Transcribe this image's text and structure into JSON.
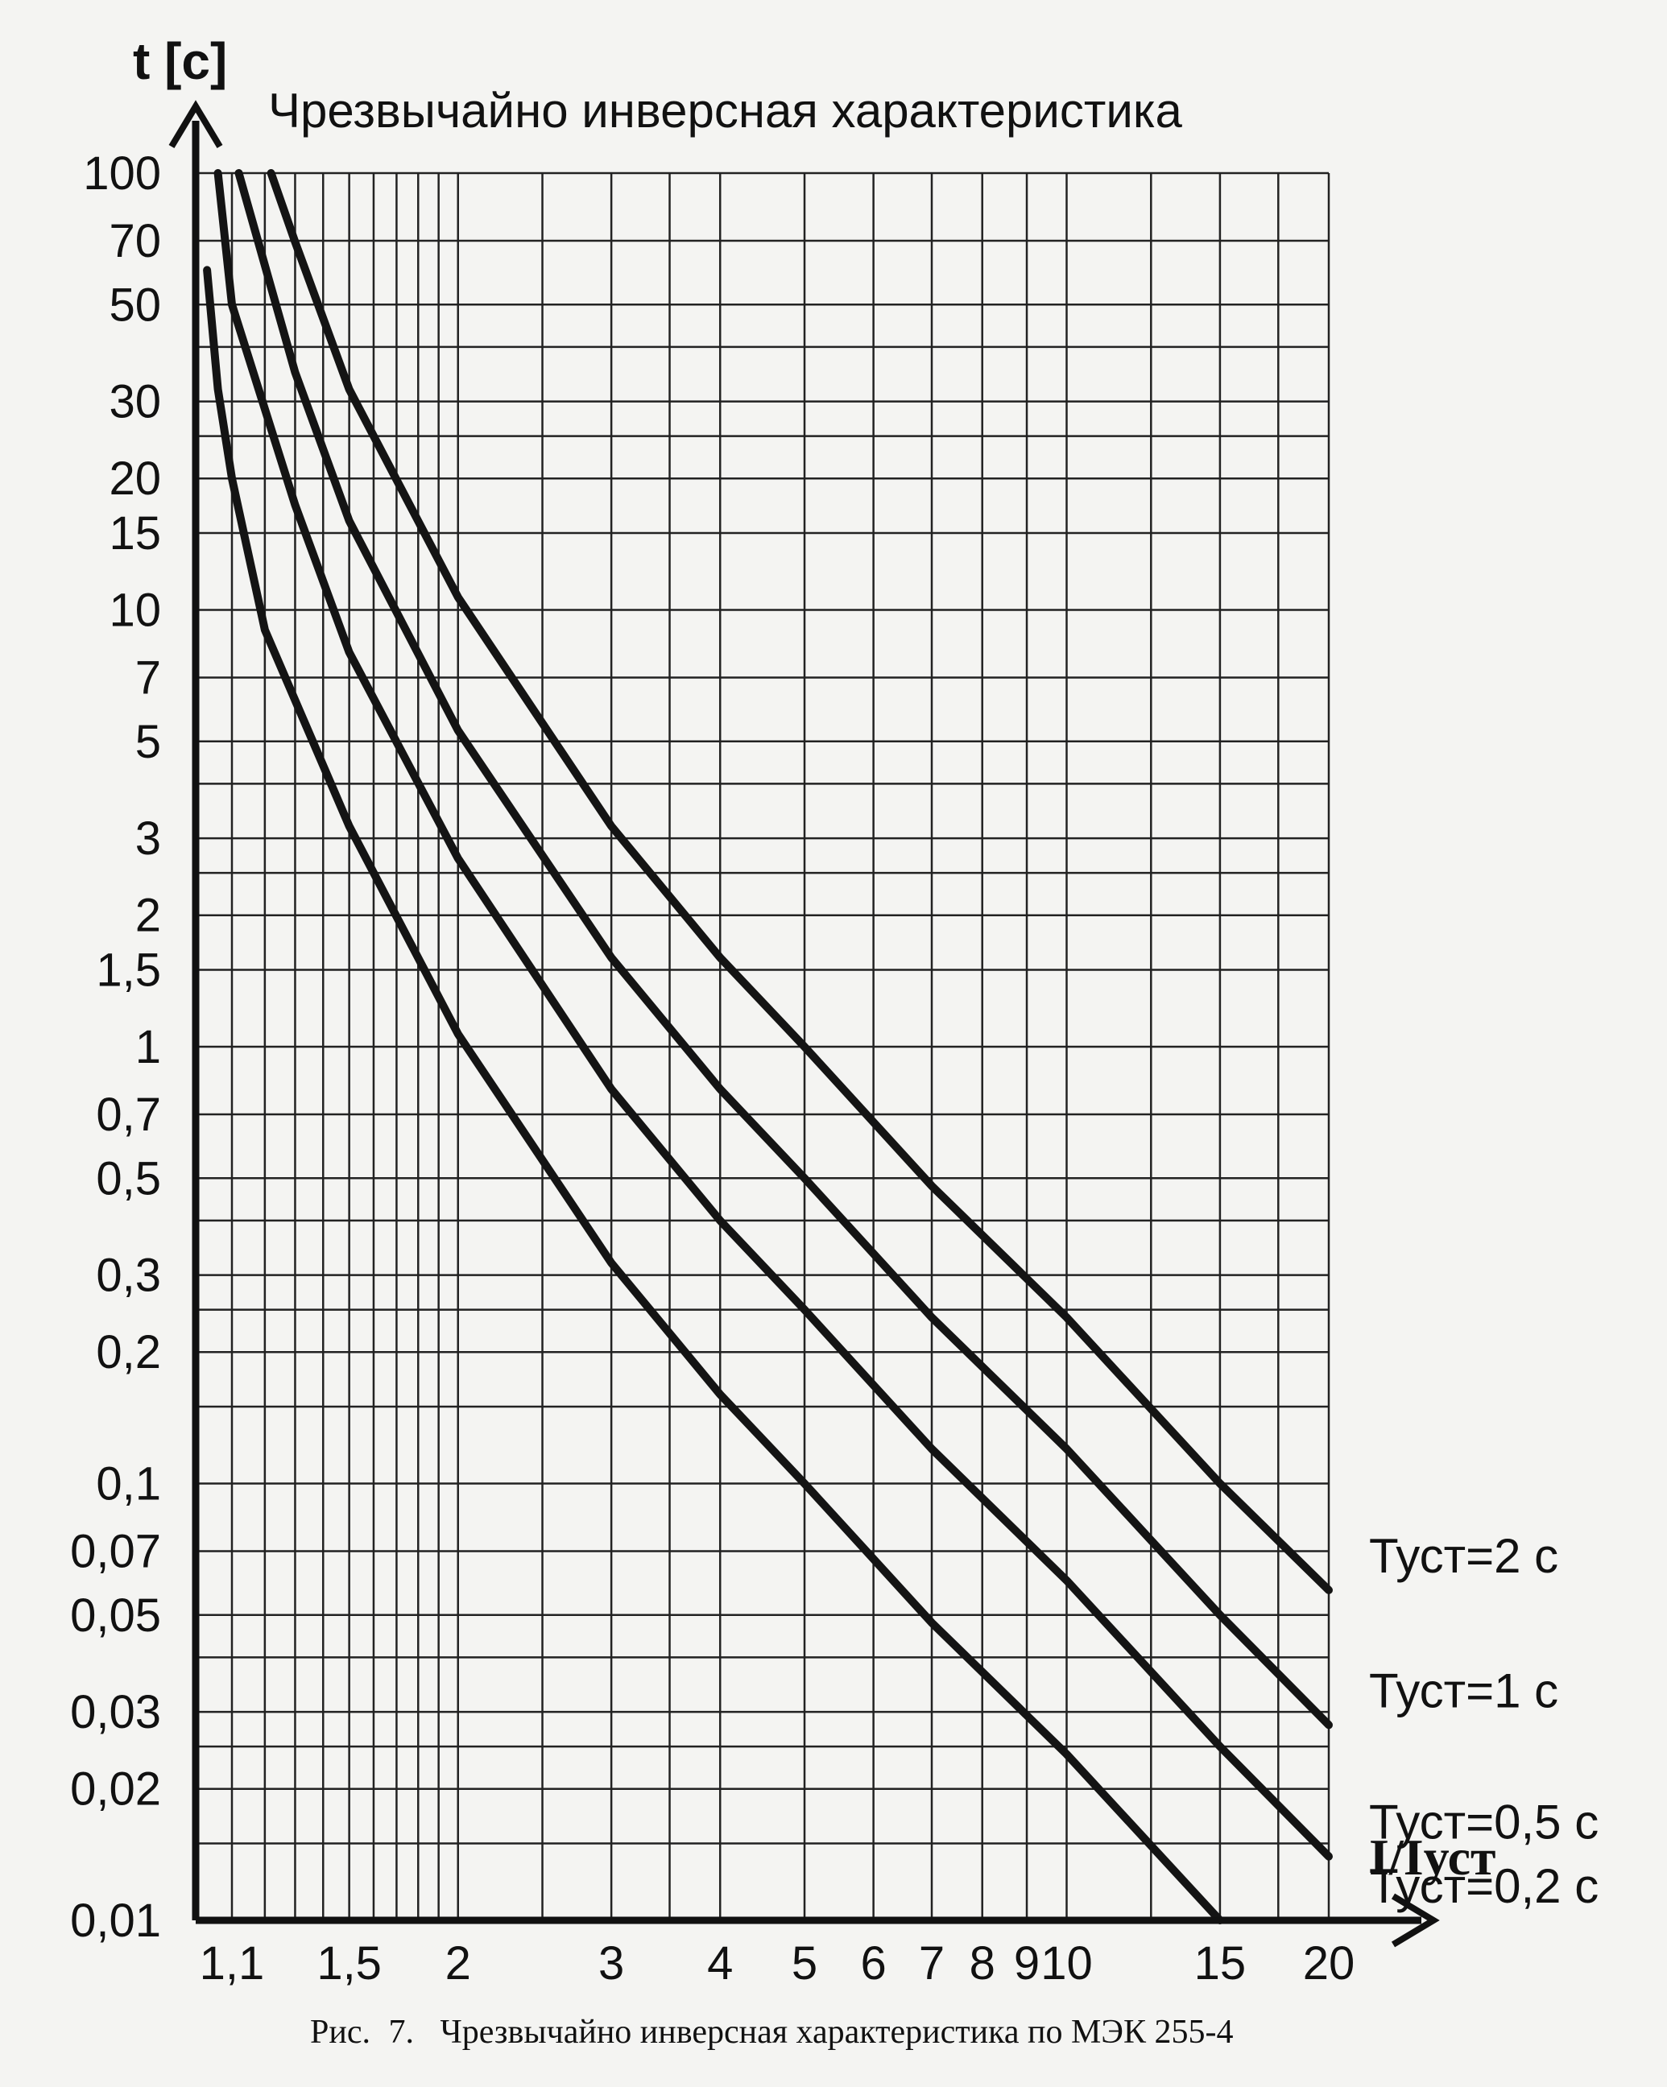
{
  "chart_data": {
    "type": "line",
    "title": "Чрезвычайно инверсная характеристика",
    "ylabel": "t [c]",
    "xlabel": "I/Iуст",
    "x_scale": "log",
    "y_scale": "log",
    "xlim": [
      1.1,
      20
    ],
    "ylim": [
      0.01,
      100
    ],
    "grid": true,
    "x_ticks": [
      1.1,
      1.2,
      1.3,
      1.4,
      1.5,
      1.6,
      1.7,
      1.8,
      1.9,
      2,
      2.5,
      3,
      3.5,
      4,
      5,
      6,
      7,
      8,
      9,
      10,
      12.5,
      15,
      17.5,
      20
    ],
    "x_tick_labels": [
      {
        "x": 1.1,
        "label": "1,1"
      },
      {
        "x": 1.5,
        "label": "1,5"
      },
      {
        "x": 2,
        "label": "2"
      },
      {
        "x": 3,
        "label": "3"
      },
      {
        "x": 4,
        "label": "4"
      },
      {
        "x": 5,
        "label": "5"
      },
      {
        "x": 6,
        "label": "6"
      },
      {
        "x": 7,
        "label": "7"
      },
      {
        "x": 8,
        "label": "8"
      },
      {
        "x": 9,
        "label": "9"
      },
      {
        "x": 10,
        "label": "10"
      },
      {
        "x": 15,
        "label": "15"
      },
      {
        "x": 20,
        "label": "20"
      }
    ],
    "y_tick_labels": [
      {
        "y": 100,
        "label": "100"
      },
      {
        "y": 70,
        "label": "70"
      },
      {
        "y": 50,
        "label": "50"
      },
      {
        "y": 30,
        "label": "30"
      },
      {
        "y": 20,
        "label": "20"
      },
      {
        "y": 15,
        "label": "15"
      },
      {
        "y": 10,
        "label": "10"
      },
      {
        "y": 7,
        "label": "7"
      },
      {
        "y": 5,
        "label": "5"
      },
      {
        "y": 3,
        "label": "3"
      },
      {
        "y": 2,
        "label": "2"
      },
      {
        "y": 1.5,
        "label": "1,5"
      },
      {
        "y": 1,
        "label": "1"
      },
      {
        "y": 0.7,
        "label": "0,7"
      },
      {
        "y": 0.5,
        "label": "0,5"
      },
      {
        "y": 0.3,
        "label": "0,3"
      },
      {
        "y": 0.2,
        "label": "0,2"
      },
      {
        "y": 0.1,
        "label": "0,1"
      },
      {
        "y": 0.07,
        "label": "0,07"
      },
      {
        "y": 0.05,
        "label": "0,05"
      },
      {
        "y": 0.03,
        "label": "0,03"
      },
      {
        "y": 0.02,
        "label": "0,02"
      },
      {
        "y": 0.01,
        "label": "0,01"
      }
    ],
    "y_grid": [
      100,
      70,
      50,
      40,
      30,
      25,
      20,
      15,
      10,
      7,
      5,
      4,
      3,
      2.5,
      2,
      1.5,
      1,
      0.7,
      0.5,
      0.4,
      0.3,
      0.25,
      0.2,
      0.15,
      0.1,
      0.07,
      0.05,
      0.04,
      0.03,
      0.025,
      0.02,
      0.015,
      0.01
    ],
    "series": [
      {
        "label": "Туст=2 с",
        "x": [
          1.22,
          1.3,
          1.5,
          2,
          3,
          4,
          5,
          7,
          10,
          15,
          20
        ],
        "y": [
          100,
          69.6,
          32,
          10.7,
          3.2,
          1.6,
          1.0,
          0.48,
          0.24,
          0.1,
          0.057
        ]
      },
      {
        "label": "Туст=1 с",
        "x": [
          1.12,
          1.3,
          1.5,
          2,
          3,
          4,
          5,
          7,
          10,
          15,
          20
        ],
        "y": [
          100,
          35,
          16,
          5.3,
          1.6,
          0.8,
          0.5,
          0.24,
          0.12,
          0.05,
          0.028
        ]
      },
      {
        "label": "Туст=0,5 с",
        "x": [
          1.06,
          1.1,
          1.3,
          1.5,
          2,
          3,
          4,
          5,
          7,
          10,
          15,
          20
        ],
        "y": [
          100,
          50,
          17.4,
          8,
          2.7,
          0.8,
          0.4,
          0.25,
          0.12,
          0.06,
          0.025,
          0.014
        ]
      },
      {
        "label": "Туст=0,2 с",
        "x": [
          1.03,
          1.06,
          1.1,
          1.2,
          1.5,
          2,
          3,
          4,
          5,
          7,
          10,
          15,
          20
        ],
        "y": [
          60,
          32,
          20,
          9,
          3.2,
          1.07,
          0.32,
          0.16,
          0.1,
          0.048,
          0.024,
          0.01,
          0.0056
        ]
      }
    ]
  },
  "caption": {
    "prefix": "Рис.",
    "number": "7.",
    "text": "Чрезвычайно инверсная характеристика по МЭК 255-4"
  }
}
